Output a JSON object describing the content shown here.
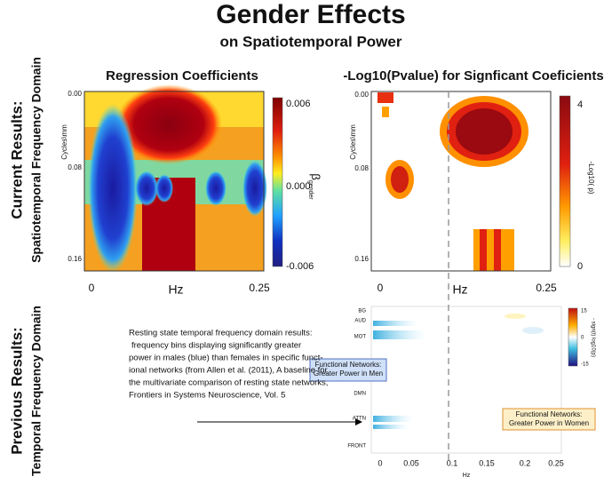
{
  "header": {
    "title": "Gender Effects",
    "subtitle": "on Spatiotemporal Power"
  },
  "rows": [
    {
      "label": "Current Results:",
      "sublabel": "Spatiotemporal Frequency Domain"
    },
    {
      "label": "Previous Results:",
      "sublabel": "Temporal Frequency Domain"
    }
  ],
  "left_panel": {
    "title": "Regression Coefficients",
    "y_label": "Cycles\\mm",
    "y_ticks": [
      "0.00",
      "0.08",
      "0.16"
    ],
    "x_label": "Hz",
    "x_ticks": [
      "0",
      "0.25"
    ],
    "colorbar_ticks": [
      "0.006",
      "0.000",
      "-0.006"
    ],
    "colorbar_label": "β",
    "colorbar_label_sub": "gender"
  },
  "right_panel": {
    "title": "-Log10(Pvalue) for Signficant Coeficients",
    "y_label": "Cycles\\mm",
    "y_ticks": [
      "0.00",
      "0.08",
      "0.16"
    ],
    "x_label": "Hz",
    "x_ticks": [
      "0",
      "0.25"
    ],
    "colorbar_ticks": [
      "4",
      "0"
    ],
    "colorbar_label": "-Log10( p)"
  },
  "bottom_panel": {
    "networks": [
      "BG",
      "AUD",
      "MOT",
      "DMN",
      "ATTN",
      "FRONT"
    ],
    "x_ticks": [
      "0",
      "0.05",
      "0.1",
      "0.15",
      "0.2",
      "0.25"
    ],
    "x_label": "Hz",
    "colorbar_ticks": [
      "15",
      "0",
      "-15"
    ],
    "colorbar_label": "- sign(t) log10(p)",
    "men_box": [
      "Functional Networks:",
      "Greater Power in Men"
    ],
    "women_box": [
      "Functional Networks:",
      "Greater Power in Women"
    ]
  },
  "description": [
    "Resting state temporal frequency domain results:",
    "frequency bins displaying significantly greater",
    "power in males (blue) than females in specific funct-",
    "ional networks (from Allen et al. (2011), A baseline for",
    "the multivariate comparison of resting state networks,",
    "Frontiers in Systems Neuroscience, Vol. 5"
  ]
}
